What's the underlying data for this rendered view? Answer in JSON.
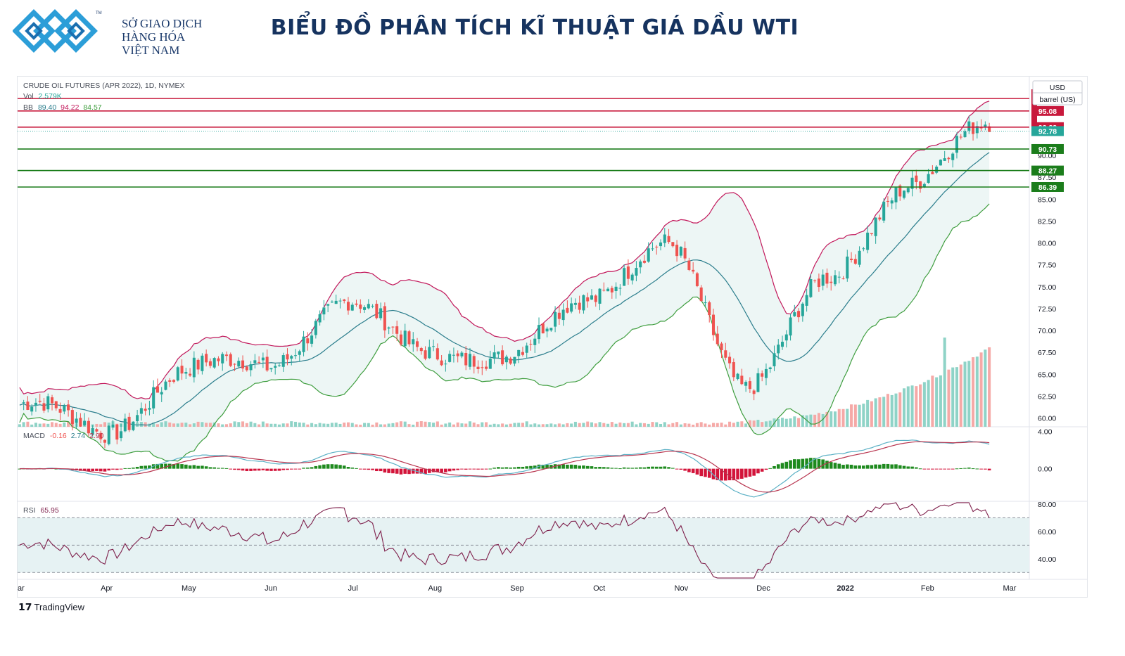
{
  "logo": {
    "line1": "SỞ GIAO DỊCH",
    "line2": "HÀNG HÓA",
    "line3": "VIỆT NAM",
    "tm": "TM"
  },
  "title": "BIỂU ĐỒ PHÂN TÍCH KĨ THUẬT GIÁ DẦU WTI",
  "branding": "TradingView",
  "colors": {
    "up": "#26a69a",
    "down": "#ef5350",
    "resistance": "#c8193c",
    "support": "#1b7d1b",
    "bb_upper": "#c2185b",
    "bb_mid": "#2a7d8c",
    "bb_lower": "#3f9e3f",
    "macd_line": "#5ab0c5",
    "signal_line": "#b8354f",
    "rsi": "#7e1f4b"
  },
  "legend": {
    "symbol": "CRUDE OIL FUTURES (APR 2022), 1D, NYMEX",
    "vol_label": "Vol",
    "vol_value": "2.579K",
    "bb_label": "BB",
    "bb_mid": "89.40",
    "bb_upper": "94.22",
    "bb_lower": "84.57",
    "macd_label": "MACD",
    "macd_hist": "-0.16",
    "macd_line": "2.74",
    "macd_signal": "2.90",
    "rsi_label": "RSI",
    "rsi_value": "65.95"
  },
  "chart_data": {
    "type": "candlestick",
    "currency": "USD",
    "unit": "barrel (US)",
    "x_axis_labels": [
      "ar",
      "Apr",
      "May",
      "Jun",
      "Jul",
      "Aug",
      "Sep",
      "Oct",
      "Nov",
      "Dec",
      "2022",
      "Feb",
      "Mar"
    ],
    "price_axis_ticks": [
      "95.00",
      "90.00",
      "87.50",
      "85.00",
      "82.50",
      "80.00",
      "77.50",
      "75.00",
      "72.50",
      "70.00",
      "67.50",
      "65.00",
      "62.50",
      "60.00"
    ],
    "price_range": [
      59,
      99
    ],
    "price_labels": [
      {
        "value": 95.08,
        "text": "95.08",
        "kind": "resistance"
      },
      {
        "value": 93.23,
        "text": "93.23",
        "kind": "resistance"
      },
      {
        "value": 92.78,
        "text": "92.78",
        "kind": "last"
      },
      {
        "value": 90.73,
        "text": "90.73",
        "kind": "support"
      },
      {
        "value": 88.27,
        "text": "88.27",
        "kind": "support"
      },
      {
        "value": 86.39,
        "text": "86.39",
        "kind": "support"
      }
    ],
    "horizontal_levels": [
      96.5,
      95.08,
      93.23,
      90.73,
      88.27,
      86.39
    ],
    "price_series_monthly": [
      {
        "month": "Mar",
        "close": 61.5
      },
      {
        "month": "Apr",
        "close": 58.5
      },
      {
        "month": "May",
        "close": 65.0
      },
      {
        "month": "Jun",
        "close": 66.5
      },
      {
        "month": "Jul",
        "close": 72.5
      },
      {
        "month": "Aug",
        "close": 68.5
      },
      {
        "month": "Sep",
        "close": 66.0
      },
      {
        "month": "Oct",
        "close": 74.5
      },
      {
        "month": "Nov",
        "close": 79.0
      },
      {
        "month": "Dec",
        "close": 64.5
      },
      {
        "month": "2022",
        "close": 75.0
      },
      {
        "month": "Feb",
        "close": 87.5
      },
      {
        "month": "Feb-end",
        "close": 92.78
      }
    ],
    "macd": {
      "ticks": [
        "4.00",
        "0.00"
      ],
      "range": [
        -3.5,
        4.5
      ]
    },
    "rsi": {
      "ticks": [
        "80.00",
        "60.00",
        "40.00"
      ],
      "range": [
        25,
        82
      ],
      "bands": [
        70,
        30,
        50
      ]
    }
  }
}
